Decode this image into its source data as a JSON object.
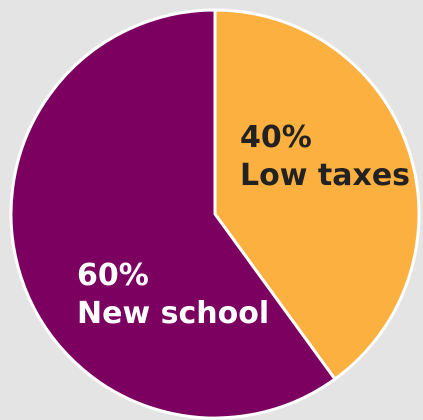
{
  "chart_data": {
    "type": "pie",
    "slices": [
      {
        "label": "Low taxes",
        "value": 40,
        "value_text": "40%",
        "color": "#fbb040",
        "text_color": "#222222"
      },
      {
        "label": "New school",
        "value": 60,
        "value_text": "60%",
        "color": "#7b0060",
        "text_color": "#ffffff"
      }
    ],
    "start_angle": "12 o'clock",
    "direction": "clockwise",
    "slice_border_color": "#ffffff",
    "background_color": "#e4e4e4"
  }
}
